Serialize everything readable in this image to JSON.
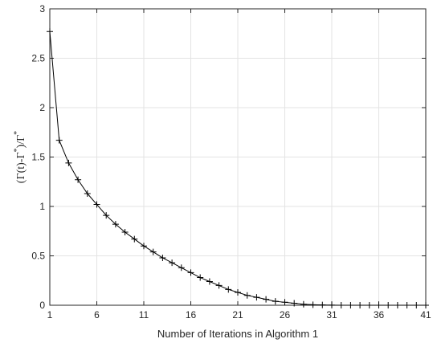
{
  "chart_data": {
    "type": "line",
    "title": "",
    "xlabel": "Number of Iterations in Algorithm 1",
    "ylabel": "(Γ(t)-Γ*)/Γ*",
    "ylabel_parts": {
      "main": "(Γ(t)-Γ",
      "sup1": "*",
      "mid": ")/Γ",
      "sup2": "*"
    },
    "xlim": [
      1,
      41
    ],
    "ylim": [
      0,
      3
    ],
    "xticks": [
      1,
      6,
      11,
      16,
      21,
      26,
      31,
      36,
      41
    ],
    "yticks": [
      0,
      0.5,
      1,
      1.5,
      2,
      2.5,
      3
    ],
    "ytick_labels": [
      "0",
      "0.5",
      "1",
      "1.5",
      "2",
      "2.5",
      "3"
    ],
    "grid": true,
    "marker": "+",
    "line_color": "#000000",
    "x": [
      1,
      2,
      3,
      4,
      5,
      6,
      7,
      8,
      9,
      10,
      11,
      12,
      13,
      14,
      15,
      16,
      17,
      18,
      19,
      20,
      21,
      22,
      23,
      24,
      25,
      26,
      27,
      28,
      29,
      30,
      31,
      32,
      33,
      34,
      35,
      36,
      37,
      38,
      39,
      40,
      41
    ],
    "values": [
      2.77,
      1.67,
      1.44,
      1.27,
      1.13,
      1.02,
      0.91,
      0.82,
      0.74,
      0.67,
      0.6,
      0.54,
      0.48,
      0.43,
      0.38,
      0.33,
      0.28,
      0.24,
      0.2,
      0.16,
      0.13,
      0.1,
      0.08,
      0.06,
      0.04,
      0.03,
      0.02,
      0.01,
      0.005,
      0.003,
      0.001,
      0,
      0,
      0,
      0,
      0,
      0,
      0,
      0,
      0,
      0
    ]
  }
}
